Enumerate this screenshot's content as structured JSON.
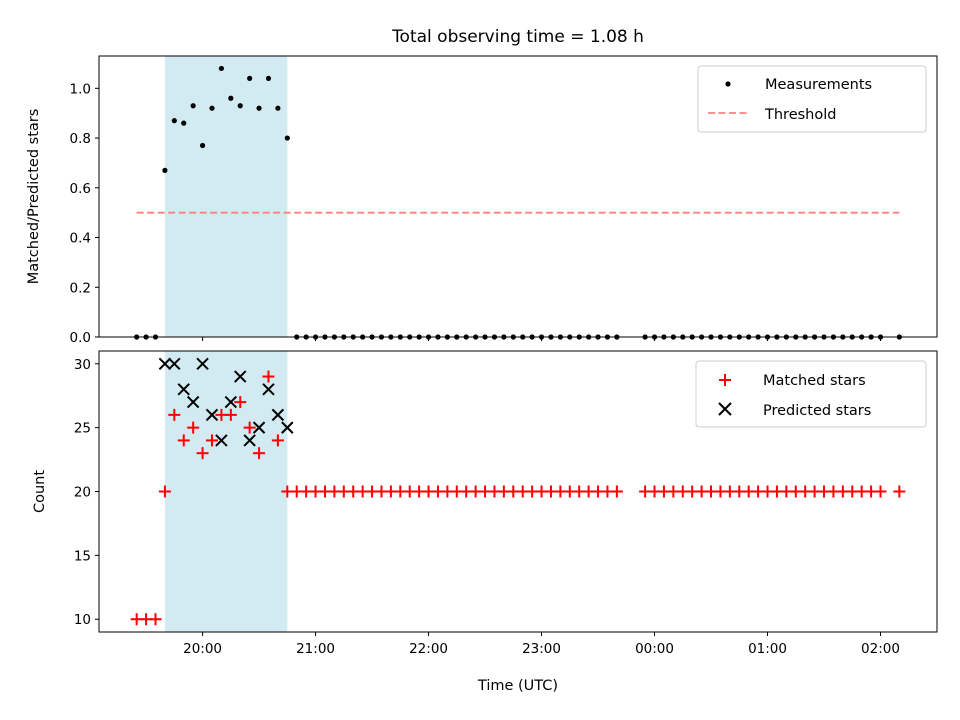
{
  "chart_data": [
    {
      "type": "scatter",
      "title": "Total observing time = 1.08 h",
      "xlabel": "",
      "ylabel": "Matched/Predicted stars",
      "ylim": [
        0,
        1.13
      ],
      "yticks": [
        "0.0",
        "0.2",
        "0.4",
        "0.6",
        "0.8",
        "1.0"
      ],
      "xlim": [
        "19:05",
        "02:30"
      ],
      "xticks": [
        "20:00",
        "21:00",
        "22:00",
        "23:00",
        "00:00",
        "01:00",
        "02:00"
      ],
      "xtick_labels_visible": false,
      "legend": {
        "position": "top-right",
        "entries": [
          "Measurements",
          "Threshold"
        ]
      },
      "shaded_interval": {
        "x_start": "19:40",
        "x_end": "20:45",
        "color": "#add8e6"
      },
      "threshold": {
        "name": "Threshold",
        "y": 0.5,
        "x_start": "19:25",
        "x_end": "02:10",
        "color": "#ff7f7f",
        "style": "dashed"
      },
      "series": [
        {
          "name": "Measurements",
          "color": "#000000",
          "marker": "dot",
          "x": [
            "19:25",
            "19:30",
            "19:35",
            "19:40",
            "19:45",
            "19:50",
            "19:55",
            "20:00",
            "20:05",
            "20:10",
            "20:15",
            "20:20",
            "20:25",
            "20:30",
            "20:35",
            "20:40",
            "20:45",
            "20:50",
            "20:55",
            "21:00",
            "21:05",
            "21:10",
            "21:15",
            "21:20",
            "21:25",
            "21:30",
            "21:35",
            "21:40",
            "21:45",
            "21:50",
            "21:55",
            "22:00",
            "22:05",
            "22:10",
            "22:15",
            "22:20",
            "22:25",
            "22:30",
            "22:35",
            "22:40",
            "22:45",
            "22:50",
            "22:55",
            "23:00",
            "23:05",
            "23:10",
            "23:15",
            "23:20",
            "23:25",
            "23:30",
            "23:35",
            "23:40",
            "23:55",
            "00:00",
            "00:05",
            "00:10",
            "00:15",
            "00:20",
            "00:25",
            "00:30",
            "00:35",
            "00:40",
            "00:45",
            "00:50",
            "00:55",
            "01:00",
            "01:05",
            "01:10",
            "01:15",
            "01:20",
            "01:25",
            "01:30",
            "01:35",
            "01:40",
            "01:45",
            "01:50",
            "01:55",
            "02:00",
            "02:10"
          ],
          "y": [
            0,
            0,
            0,
            0.67,
            0.87,
            0.86,
            0.93,
            0.77,
            0.92,
            1.08,
            0.96,
            0.93,
            1.04,
            0.92,
            1.04,
            0.92,
            0.8,
            0,
            0,
            0,
            0,
            0,
            0,
            0,
            0,
            0,
            0,
            0,
            0,
            0,
            0,
            0,
            0,
            0,
            0,
            0,
            0,
            0,
            0,
            0,
            0,
            0,
            0,
            0,
            0,
            0,
            0,
            0,
            0,
            0,
            0,
            0,
            0,
            0,
            0,
            0,
            0,
            0,
            0,
            0,
            0,
            0,
            0,
            0,
            0,
            0,
            0,
            0,
            0,
            0,
            0,
            0,
            0,
            0,
            0,
            0,
            0,
            0,
            0
          ]
        }
      ]
    },
    {
      "type": "scatter",
      "title": "",
      "xlabel": "Time (UTC)",
      "ylabel": "Count",
      "ylim": [
        9,
        31
      ],
      "yticks": [
        "10",
        "15",
        "20",
        "25",
        "30"
      ],
      "xlim": [
        "19:05",
        "02:30"
      ],
      "xticks": [
        "20:00",
        "21:00",
        "22:00",
        "23:00",
        "00:00",
        "01:00",
        "02:00"
      ],
      "legend": {
        "position": "top-right",
        "entries": [
          "Matched stars",
          "Predicted stars"
        ]
      },
      "shaded_interval": {
        "x_start": "19:40",
        "x_end": "20:45",
        "color": "#add8e6"
      },
      "series": [
        {
          "name": "Matched stars",
          "color": "#ff0000",
          "marker": "plus",
          "x": [
            "19:25",
            "19:30",
            "19:35",
            "19:40",
            "19:45",
            "19:50",
            "19:55",
            "20:00",
            "20:05",
            "20:10",
            "20:15",
            "20:20",
            "20:25",
            "20:30",
            "20:35",
            "20:40",
            "20:45",
            "20:50",
            "20:55",
            "21:00",
            "21:05",
            "21:10",
            "21:15",
            "21:20",
            "21:25",
            "21:30",
            "21:35",
            "21:40",
            "21:45",
            "21:50",
            "21:55",
            "22:00",
            "22:05",
            "22:10",
            "22:15",
            "22:20",
            "22:25",
            "22:30",
            "22:35",
            "22:40",
            "22:45",
            "22:50",
            "22:55",
            "23:00",
            "23:05",
            "23:10",
            "23:15",
            "23:20",
            "23:25",
            "23:30",
            "23:35",
            "23:40",
            "23:55",
            "00:00",
            "00:05",
            "00:10",
            "00:15",
            "00:20",
            "00:25",
            "00:30",
            "00:35",
            "00:40",
            "00:45",
            "00:50",
            "00:55",
            "01:00",
            "01:05",
            "01:10",
            "01:15",
            "01:20",
            "01:25",
            "01:30",
            "01:35",
            "01:40",
            "01:45",
            "01:50",
            "01:55",
            "02:00",
            "02:10"
          ],
          "y": [
            10,
            10,
            10,
            20,
            26,
            24,
            25,
            23,
            24,
            26,
            26,
            27,
            25,
            23,
            29,
            24,
            20,
            20,
            20,
            20,
            20,
            20,
            20,
            20,
            20,
            20,
            20,
            20,
            20,
            20,
            20,
            20,
            20,
            20,
            20,
            20,
            20,
            20,
            20,
            20,
            20,
            20,
            20,
            20,
            20,
            20,
            20,
            20,
            20,
            20,
            20,
            20,
            20,
            20,
            20,
            20,
            20,
            20,
            20,
            20,
            20,
            20,
            20,
            20,
            20,
            20,
            20,
            20,
            20,
            20,
            20,
            20,
            20,
            20,
            20,
            20,
            20,
            20,
            20
          ]
        },
        {
          "name": "Predicted stars",
          "color": "#000000",
          "marker": "x",
          "x": [
            "19:40",
            "19:45",
            "19:50",
            "19:55",
            "20:00",
            "20:05",
            "20:10",
            "20:15",
            "20:20",
            "20:25",
            "20:30",
            "20:35",
            "20:40",
            "20:45"
          ],
          "y": [
            30,
            30,
            28,
            27,
            30,
            26,
            24,
            27,
            29,
            24,
            25,
            28,
            26,
            25
          ]
        }
      ]
    }
  ]
}
